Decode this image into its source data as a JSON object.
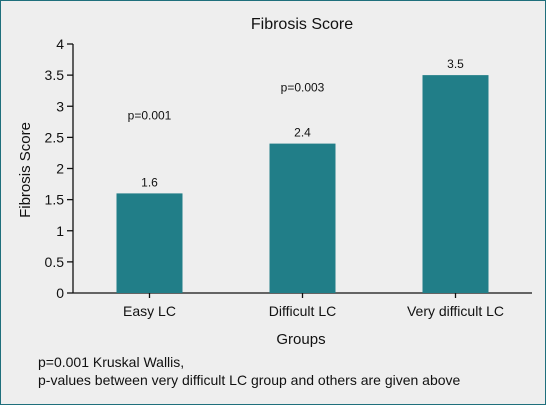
{
  "chart_data": {
    "type": "bar",
    "title": "Fibrosis Score",
    "xlabel": "Groups",
    "ylabel": "Fibrosis Score",
    "categories": [
      "Easy LC",
      "Difficult LC",
      "Very difficult LC"
    ],
    "values": [
      1.6,
      2.4,
      3.5
    ],
    "value_labels": [
      "1.6",
      "2.4",
      "3.5"
    ],
    "ylim": [
      0,
      4
    ],
    "yticks": [
      "0",
      "0.5",
      "1",
      "1.5",
      "2",
      "2.5",
      "3",
      "3.5",
      "4"
    ],
    "annotations": [
      {
        "text": "p=0.001",
        "category_index": 0,
        "y": 2.85
      },
      {
        "text": "p=0.003",
        "category_index": 1,
        "y": 3.3
      }
    ],
    "bar_color": "#217e88",
    "grid": false
  },
  "footnote": {
    "line1": "p=0.001 Kruskal Wallis,",
    "line2": "p-values between very difficult LC group and others are given above"
  }
}
